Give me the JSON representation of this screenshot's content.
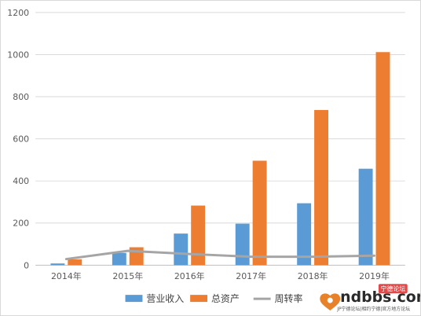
{
  "chart_data": {
    "type": "bar",
    "categories": [
      "2014年",
      "2015年",
      "2016年",
      "2017年",
      "2018年",
      "2019年"
    ],
    "series": [
      {
        "name": "营业收入",
        "type": "bar",
        "color": "#5b9bd5",
        "values": [
          8,
          58,
          150,
          197,
          294,
          458
        ]
      },
      {
        "name": "总资产",
        "type": "bar",
        "color": "#ed7d31",
        "values": [
          28,
          85,
          283,
          496,
          737,
          1012
        ]
      },
      {
        "name": "周转率",
        "type": "line",
        "color": "#a5a5a5",
        "values": [
          29,
          68,
          53,
          40,
          40,
          45
        ]
      }
    ],
    "y_ticks": [
      "0",
      "200",
      "400",
      "600",
      "800",
      "1000",
      "1200"
    ],
    "ylim": [
      0,
      1200
    ],
    "grid": true,
    "legend_position": "bottom",
    "title": "",
    "xlabel": "",
    "ylabel": ""
  },
  "watermark": {
    "brand": "ndbbs.com",
    "badge": "宁德论坛",
    "tagline": "JP宁德论坛|相约宁德|官方地方论坛"
  }
}
